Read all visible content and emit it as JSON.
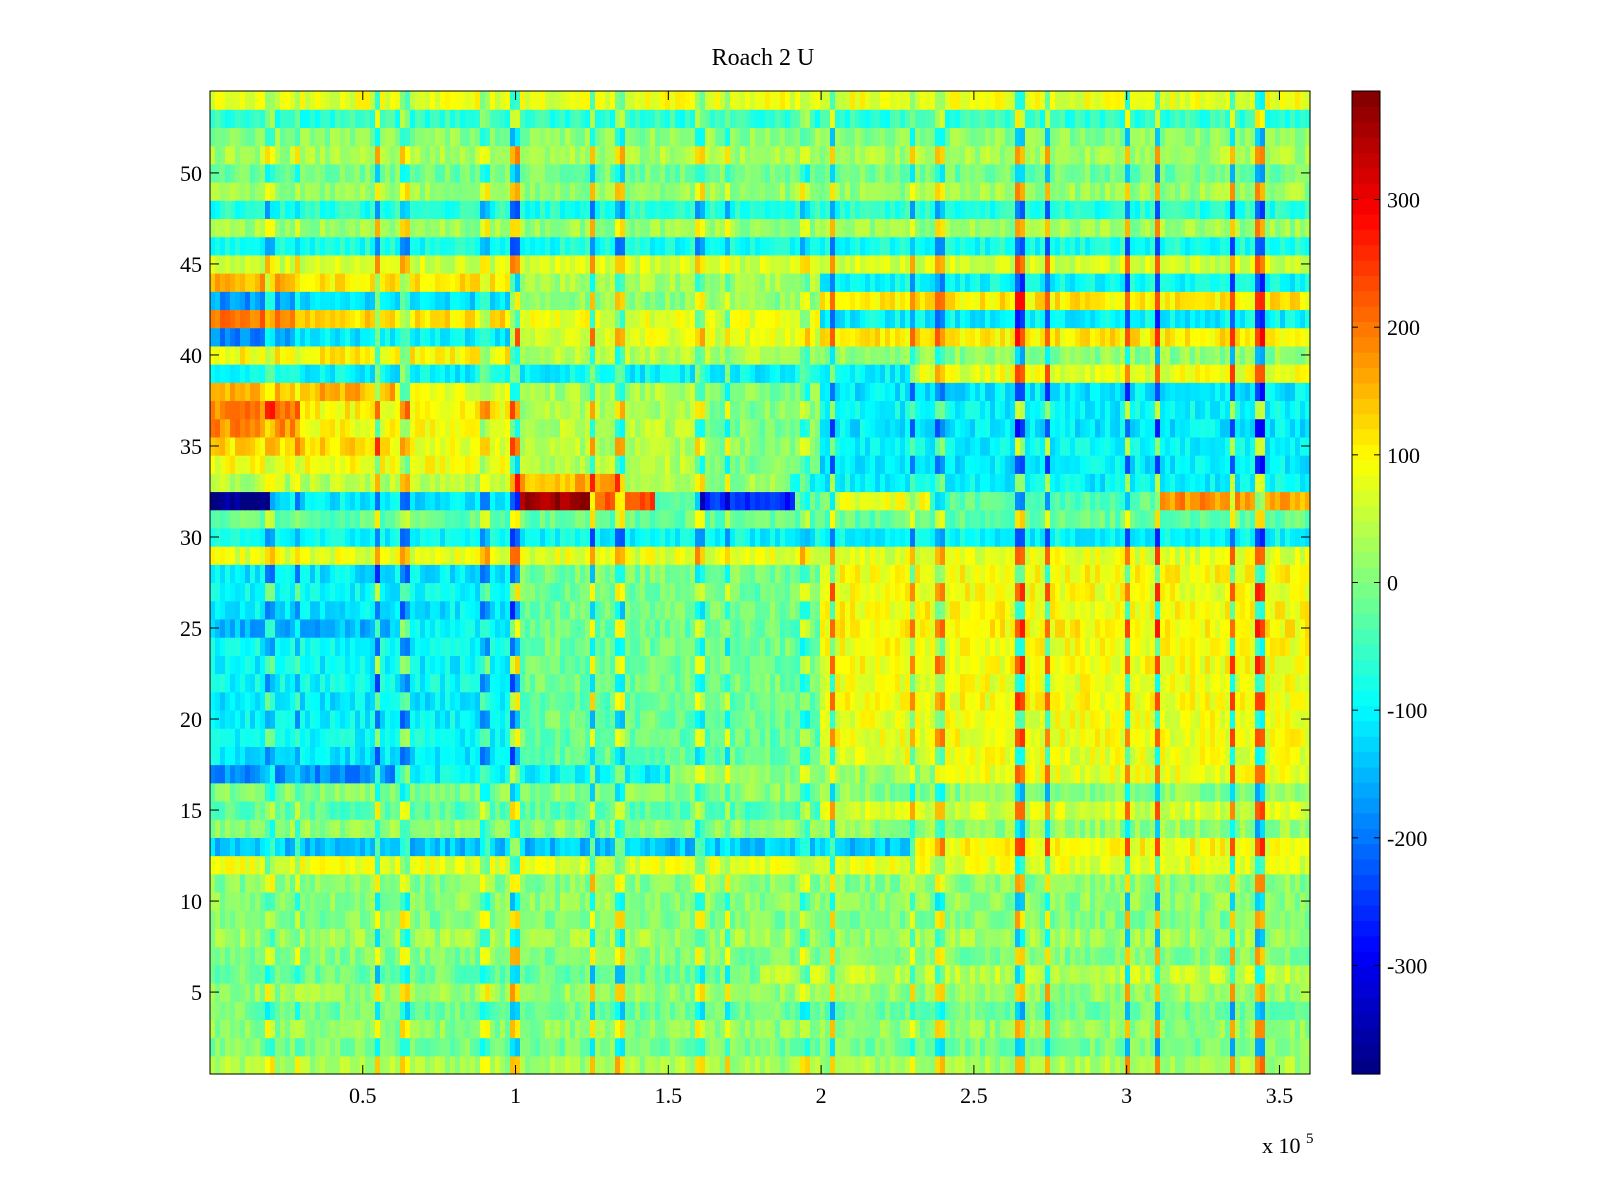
{
  "chart_data": {
    "type": "heatmap",
    "title": "Roach 2 U",
    "xlabel": "",
    "ylabel": "",
    "x_multiplier_label": "x 10",
    "x_multiplier_exponent": "5",
    "xlim": [
      0,
      360000
    ],
    "ylim": [
      0.5,
      54.5
    ],
    "n_rows": 54,
    "x_ticks": [
      0.5,
      1,
      1.5,
      2,
      2.5,
      3,
      3.5
    ],
    "x_tick_labels": [
      "0.5",
      "1",
      "1.5",
      "2",
      "2.5",
      "3",
      "3.5"
    ],
    "y_ticks": [
      5,
      10,
      15,
      20,
      25,
      30,
      35,
      40,
      45,
      50
    ],
    "y_tick_labels": [
      "5",
      "10",
      "15",
      "20",
      "25",
      "30",
      "35",
      "40",
      "45",
      "50"
    ],
    "colormap": "jet",
    "clim": [
      -385,
      385
    ],
    "colorbar_ticks": [
      -300,
      -200,
      -100,
      0,
      100,
      200,
      300
    ],
    "colorbar_tick_labels": [
      "-300",
      "-200",
      "-100",
      "0",
      "100",
      "200",
      "300"
    ],
    "noise_amplitude": 35,
    "row_segments": [
      {
        "row": 1,
        "segments": [
          [
            0,
            3.6,
            30
          ]
        ]
      },
      {
        "row": 2,
        "segments": [
          [
            0,
            3.6,
            -5
          ]
        ]
      },
      {
        "row": 3,
        "segments": [
          [
            0,
            3.6,
            10
          ]
        ]
      },
      {
        "row": 4,
        "segments": [
          [
            0,
            3.6,
            -10
          ]
        ]
      },
      {
        "row": 5,
        "segments": [
          [
            0,
            3.6,
            15
          ]
        ]
      },
      {
        "row": 6,
        "segments": [
          [
            0,
            1.8,
            -15
          ],
          [
            1.8,
            3.6,
            50
          ]
        ]
      },
      {
        "row": 7,
        "segments": [
          [
            0,
            3.6,
            0
          ]
        ]
      },
      {
        "row": 8,
        "segments": [
          [
            0,
            3.6,
            25
          ]
        ]
      },
      {
        "row": 9,
        "segments": [
          [
            0,
            3.6,
            0
          ]
        ]
      },
      {
        "row": 10,
        "segments": [
          [
            0,
            3.6,
            10
          ]
        ]
      },
      {
        "row": 11,
        "segments": [
          [
            0,
            3.6,
            5
          ]
        ]
      },
      {
        "row": 12,
        "segments": [
          [
            0,
            3.6,
            75
          ]
        ]
      },
      {
        "row": 13,
        "segments": [
          [
            0,
            2.3,
            -140
          ],
          [
            2.3,
            3.6,
            95
          ]
        ]
      },
      {
        "row": 14,
        "segments": [
          [
            0,
            3.6,
            15
          ]
        ]
      },
      {
        "row": 15,
        "segments": [
          [
            0,
            2.0,
            -30
          ],
          [
            2.0,
            3.6,
            60
          ]
        ]
      },
      {
        "row": 16,
        "segments": [
          [
            0,
            3.6,
            5
          ]
        ]
      },
      {
        "row": 17,
        "segments": [
          [
            0,
            0.6,
            -180
          ],
          [
            0.6,
            1.5,
            -100
          ],
          [
            1.5,
            2.4,
            10
          ],
          [
            2.4,
            3.6,
            80
          ]
        ]
      },
      {
        "row": 18,
        "segments": [
          [
            0,
            1.0,
            -110
          ],
          [
            1.0,
            2.0,
            -20
          ],
          [
            2.0,
            3.6,
            80
          ]
        ]
      },
      {
        "row": 19,
        "segments": [
          [
            0,
            1.0,
            -90
          ],
          [
            1.0,
            2.0,
            -20
          ],
          [
            2.0,
            3.6,
            85
          ]
        ]
      },
      {
        "row": 20,
        "segments": [
          [
            0,
            1.0,
            -100
          ],
          [
            1.0,
            2.0,
            -15
          ],
          [
            2.0,
            3.6,
            85
          ]
        ]
      },
      {
        "row": 21,
        "segments": [
          [
            0,
            1.0,
            -110
          ],
          [
            1.0,
            2.0,
            -20
          ],
          [
            2.0,
            3.6,
            90
          ]
        ]
      },
      {
        "row": 22,
        "segments": [
          [
            0,
            1.0,
            -90
          ],
          [
            1.0,
            2.0,
            -10
          ],
          [
            2.0,
            3.6,
            85
          ]
        ]
      },
      {
        "row": 23,
        "segments": [
          [
            0,
            1.0,
            -100
          ],
          [
            1.0,
            2.0,
            -15
          ],
          [
            2.0,
            3.6,
            90
          ]
        ]
      },
      {
        "row": 24,
        "segments": [
          [
            0,
            1.0,
            -90
          ],
          [
            1.0,
            2.0,
            -10
          ],
          [
            2.0,
            3.6,
            90
          ]
        ]
      },
      {
        "row": 25,
        "segments": [
          [
            0,
            0.6,
            -150
          ],
          [
            0.6,
            1.0,
            -100
          ],
          [
            1.0,
            2.0,
            -20
          ],
          [
            2.0,
            3.6,
            100
          ]
        ]
      },
      {
        "row": 26,
        "segments": [
          [
            0,
            1.0,
            -110
          ],
          [
            1.0,
            2.0,
            -10
          ],
          [
            2.0,
            3.6,
            95
          ]
        ]
      },
      {
        "row": 27,
        "segments": [
          [
            0,
            1.0,
            -100
          ],
          [
            1.0,
            2.0,
            -15
          ],
          [
            2.0,
            3.6,
            90
          ]
        ]
      },
      {
        "row": 28,
        "segments": [
          [
            0,
            1.0,
            -110
          ],
          [
            1.0,
            2.0,
            -5
          ],
          [
            2.0,
            3.6,
            95
          ]
        ]
      },
      {
        "row": 29,
        "segments": [
          [
            0,
            3.6,
            75
          ]
        ]
      },
      {
        "row": 30,
        "segments": [
          [
            0,
            3.6,
            -95
          ]
        ]
      },
      {
        "row": 31,
        "segments": [
          [
            0,
            3.6,
            -20
          ]
        ]
      },
      {
        "row": 32,
        "segments": [
          [
            0,
            0.19,
            -370
          ],
          [
            0.19,
            1.02,
            -110
          ],
          [
            1.02,
            1.25,
            360
          ],
          [
            1.25,
            1.45,
            230
          ],
          [
            1.45,
            1.6,
            -20
          ],
          [
            1.6,
            1.92,
            -260
          ],
          [
            1.92,
            2.04,
            -20
          ],
          [
            2.04,
            2.35,
            80
          ],
          [
            2.35,
            3.1,
            -30
          ],
          [
            3.1,
            3.4,
            180
          ],
          [
            3.4,
            3.6,
            160
          ]
        ]
      },
      {
        "row": 33,
        "segments": [
          [
            0,
            1.0,
            40
          ],
          [
            1.0,
            1.35,
            150
          ],
          [
            1.35,
            1.6,
            40
          ],
          [
            1.6,
            1.9,
            20
          ],
          [
            1.9,
            3.6,
            -100
          ]
        ]
      },
      {
        "row": 34,
        "segments": [
          [
            0,
            1.0,
            90
          ],
          [
            1.0,
            1.6,
            40
          ],
          [
            1.6,
            2.0,
            0
          ],
          [
            2.0,
            3.6,
            -110
          ]
        ]
      },
      {
        "row": 35,
        "segments": [
          [
            0,
            0.6,
            120
          ],
          [
            0.6,
            1.0,
            80
          ],
          [
            1.0,
            1.6,
            40
          ],
          [
            1.6,
            2.0,
            0
          ],
          [
            2.0,
            3.6,
            -100
          ]
        ]
      },
      {
        "row": 36,
        "segments": [
          [
            0,
            0.3,
            180
          ],
          [
            0.3,
            1.0,
            90
          ],
          [
            1.0,
            1.6,
            40
          ],
          [
            1.6,
            2.0,
            0
          ],
          [
            2.0,
            3.6,
            -110
          ]
        ]
      },
      {
        "row": 37,
        "segments": [
          [
            0,
            0.3,
            190
          ],
          [
            0.3,
            1.0,
            100
          ],
          [
            1.0,
            1.6,
            30
          ],
          [
            1.6,
            2.0,
            0
          ],
          [
            2.0,
            3.6,
            -100
          ]
        ]
      },
      {
        "row": 38,
        "segments": [
          [
            0,
            0.6,
            150
          ],
          [
            0.6,
            1.0,
            80
          ],
          [
            1.0,
            1.6,
            30
          ],
          [
            1.6,
            2.0,
            0
          ],
          [
            2.0,
            3.6,
            -110
          ]
        ]
      },
      {
        "row": 39,
        "segments": [
          [
            0,
            2.3,
            -100
          ],
          [
            2.3,
            3.6,
            80
          ]
        ]
      },
      {
        "row": 40,
        "segments": [
          [
            0,
            1.0,
            100
          ],
          [
            1.0,
            2.0,
            40
          ],
          [
            2.0,
            3.6,
            10
          ]
        ]
      },
      {
        "row": 41,
        "segments": [
          [
            0,
            0.3,
            -180
          ],
          [
            0.3,
            1.0,
            -110
          ],
          [
            1.0,
            2.0,
            70
          ],
          [
            2.0,
            3.6,
            110
          ]
        ]
      },
      {
        "row": 42,
        "segments": [
          [
            0,
            0.3,
            200
          ],
          [
            0.3,
            1.0,
            120
          ],
          [
            1.0,
            2.0,
            80
          ],
          [
            2.0,
            3.6,
            -100
          ]
        ]
      },
      {
        "row": 43,
        "segments": [
          [
            0,
            0.3,
            -170
          ],
          [
            0.3,
            1.0,
            -120
          ],
          [
            1.0,
            2.0,
            10
          ],
          [
            2.0,
            3.6,
            110
          ]
        ]
      },
      {
        "row": 44,
        "segments": [
          [
            0,
            0.3,
            160
          ],
          [
            0.3,
            1.0,
            110
          ],
          [
            1.0,
            2.0,
            30
          ],
          [
            2.0,
            3.6,
            -90
          ]
        ]
      },
      {
        "row": 45,
        "segments": [
          [
            0,
            3.6,
            60
          ]
        ]
      },
      {
        "row": 46,
        "segments": [
          [
            0,
            3.6,
            -80
          ]
        ]
      },
      {
        "row": 47,
        "segments": [
          [
            0,
            3.6,
            20
          ]
        ]
      },
      {
        "row": 48,
        "segments": [
          [
            0,
            3.6,
            -70
          ]
        ]
      },
      {
        "row": 49,
        "segments": [
          [
            0,
            3.6,
            20
          ]
        ]
      },
      {
        "row": 50,
        "segments": [
          [
            0,
            3.6,
            -10
          ]
        ]
      },
      {
        "row": 51,
        "segments": [
          [
            0,
            3.6,
            30
          ]
        ]
      },
      {
        "row": 52,
        "segments": [
          [
            0,
            3.6,
            10
          ]
        ]
      },
      {
        "row": 53,
        "segments": [
          [
            0,
            3.6,
            -60
          ]
        ]
      },
      {
        "row": 54,
        "segments": [
          [
            0,
            3.6,
            80
          ]
        ]
      }
    ],
    "vertical_stripes": [
      {
        "x": 0.2,
        "value": 120
      },
      {
        "x": 0.29,
        "value": 100
      },
      {
        "x": 0.55,
        "value": 200
      },
      {
        "x": 0.64,
        "value": 150
      },
      {
        "x": 0.9,
        "value": 120
      },
      {
        "x": 1.0,
        "value": 220
      },
      {
        "x": 1.25,
        "value": 200
      },
      {
        "x": 1.34,
        "value": 180
      },
      {
        "x": 1.6,
        "value": 140
      },
      {
        "x": 1.69,
        "value": 130
      },
      {
        "x": 1.95,
        "value": 110
      },
      {
        "x": 2.04,
        "value": 200
      },
      {
        "x": 2.3,
        "value": 140
      },
      {
        "x": 2.39,
        "value": 150
      },
      {
        "x": 2.65,
        "value": 240
      },
      {
        "x": 2.74,
        "value": 220
      },
      {
        "x": 3.0,
        "value": 220
      },
      {
        "x": 3.1,
        "value": 240
      },
      {
        "x": 3.35,
        "value": 230
      },
      {
        "x": 3.44,
        "value": 260
      }
    ]
  }
}
